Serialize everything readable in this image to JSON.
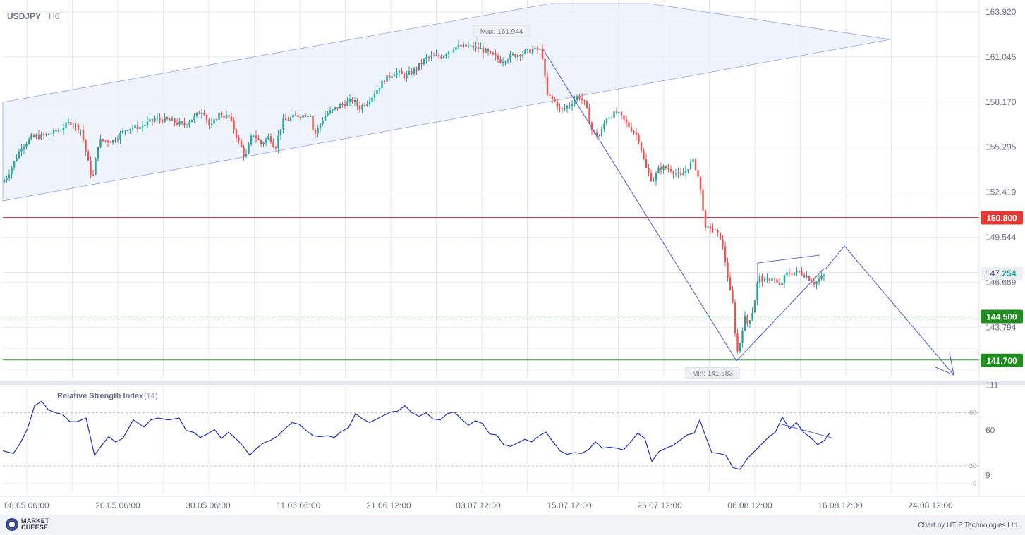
{
  "header": {
    "symbol": "USDJPY",
    "timeframe": "H6"
  },
  "footer": {
    "logo_text": "MARKET CHEESE",
    "credit": "Chart by UTIP Technologies Ltd."
  },
  "chart_data": [
    {
      "type": "candlestick",
      "symbol": "USDJPY",
      "timeframe": "H6",
      "y_ticks": [
        "163.920",
        "161.045",
        "158.170",
        "155.295",
        "152.419",
        "149.544",
        "146.669",
        "143.794"
      ],
      "x_ticks": [
        "08.05 06:00",
        "20.05 06:00",
        "30.05 06:00",
        "11.06 06:00",
        "21.06 12:00",
        "03.07 12:00",
        "15.07 12:00",
        "25.07 12:00",
        "06.08 12:00",
        "16.08 12:00",
        "24.08 12:00"
      ],
      "current_price": "147.254",
      "levels": [
        {
          "label": "150.800",
          "value": 150.8,
          "style": "solid",
          "color": "#e53935"
        },
        {
          "label": "144.500",
          "value": 144.5,
          "style": "dashed",
          "color": "#2e9b2e"
        },
        {
          "label": "141.700",
          "value": 141.7,
          "style": "solid",
          "color": "#2e9b2e"
        }
      ],
      "annotations": {
        "max": "Max: 161.944",
        "min": "Min: 141.683"
      },
      "colors": {
        "up": "#26a69a",
        "down": "#ef5350",
        "drawing": "#5b6bd6",
        "channel_fill": "#eaf0fb"
      },
      "path": [
        [
          0,
          152.8
        ],
        [
          12,
          153.6
        ],
        [
          30,
          155.3
        ],
        [
          45,
          155.9
        ],
        [
          60,
          156.0
        ],
        [
          80,
          156.3
        ],
        [
          100,
          156.9
        ],
        [
          115,
          156.4
        ],
        [
          125,
          154.3
        ],
        [
          131,
          153.2
        ],
        [
          140,
          155.7
        ],
        [
          160,
          155.7
        ],
        [
          180,
          156.5
        ],
        [
          200,
          156.6
        ],
        [
          220,
          157.1
        ],
        [
          240,
          157.0
        ],
        [
          260,
          156.7
        ],
        [
          275,
          157.2
        ],
        [
          288,
          157.7
        ],
        [
          298,
          156.5
        ],
        [
          310,
          157.4
        ],
        [
          325,
          157.2
        ],
        [
          335,
          156.0
        ],
        [
          348,
          154.6
        ],
        [
          358,
          156.2
        ],
        [
          370,
          155.5
        ],
        [
          382,
          156.0
        ],
        [
          390,
          155.2
        ],
        [
          400,
          156.9
        ],
        [
          420,
          157.3
        ],
        [
          440,
          157.4
        ],
        [
          445,
          156.0
        ],
        [
          460,
          157.3
        ],
        [
          480,
          157.9
        ],
        [
          500,
          158.3
        ],
        [
          510,
          157.8
        ],
        [
          525,
          158.4
        ],
        [
          545,
          159.6
        ],
        [
          560,
          160.1
        ],
        [
          575,
          159.8
        ],
        [
          590,
          160.3
        ],
        [
          605,
          161.0
        ],
        [
          625,
          161.1
        ],
        [
          645,
          161.7
        ],
        [
          665,
          161.7
        ],
        [
          680,
          161.6
        ],
        [
          695,
          161.2
        ],
        [
          710,
          160.8
        ],
        [
          725,
          161.1
        ],
        [
          740,
          161.3
        ],
        [
          755,
          161.5
        ],
        [
          768,
          161.5
        ],
        [
          775,
          158.6
        ],
        [
          785,
          158.3
        ],
        [
          795,
          157.6
        ],
        [
          810,
          158.1
        ],
        [
          820,
          158.6
        ],
        [
          830,
          158.0
        ],
        [
          840,
          156.2
        ],
        [
          850,
          156.0
        ],
        [
          860,
          157.2
        ],
        [
          875,
          157.5
        ],
        [
          890,
          156.7
        ],
        [
          905,
          155.9
        ],
        [
          915,
          154.0
        ],
        [
          925,
          153.1
        ],
        [
          935,
          154.0
        ],
        [
          950,
          153.9
        ],
        [
          965,
          153.4
        ],
        [
          975,
          154.0
        ],
        [
          982,
          154.4
        ],
        [
          988,
          153.8
        ],
        [
          995,
          152.0
        ],
        [
          1000,
          150.0
        ],
        [
          1008,
          150.2
        ],
        [
          1015,
          149.8
        ],
        [
          1022,
          149.5
        ],
        [
          1030,
          147.5
        ],
        [
          1035,
          146.0
        ],
        [
          1040,
          145.0
        ],
        [
          1044,
          142.0
        ],
        [
          1050,
          143.0
        ],
        [
          1055,
          144.5
        ],
        [
          1060,
          144.0
        ],
        [
          1068,
          145.0
        ],
        [
          1075,
          147.0
        ],
        [
          1085,
          146.7
        ],
        [
          1095,
          147.0
        ],
        [
          1105,
          146.4
        ],
        [
          1115,
          147.2
        ],
        [
          1125,
          147.3
        ],
        [
          1135,
          147.3
        ],
        [
          1145,
          147.0
        ],
        [
          1155,
          146.6
        ],
        [
          1165,
          147.0
        ],
        [
          1172,
          147.2
        ]
      ]
    },
    {
      "type": "line",
      "title": "Relative Strength Index",
      "period": "(14)",
      "y_ticks": [
        "111",
        "60",
        "9"
      ],
      "levels": [
        "80",
        "20",
        "0"
      ],
      "color": "#1f2fbf",
      "path": [
        [
          0,
          37
        ],
        [
          15,
          34
        ],
        [
          25,
          46
        ],
        [
          35,
          62
        ],
        [
          45,
          88
        ],
        [
          55,
          93
        ],
        [
          65,
          83
        ],
        [
          75,
          80
        ],
        [
          85,
          78
        ],
        [
          95,
          70
        ],
        [
          105,
          70
        ],
        [
          118,
          74
        ],
        [
          130,
          32
        ],
        [
          140,
          43
        ],
        [
          150,
          53
        ],
        [
          160,
          47
        ],
        [
          170,
          51
        ],
        [
          185,
          72
        ],
        [
          200,
          64
        ],
        [
          210,
          72
        ],
        [
          220,
          74
        ],
        [
          235,
          72
        ],
        [
          250,
          74
        ],
        [
          260,
          60
        ],
        [
          270,
          58
        ],
        [
          280,
          52
        ],
        [
          290,
          56
        ],
        [
          300,
          61
        ],
        [
          310,
          51
        ],
        [
          320,
          58
        ],
        [
          330,
          51
        ],
        [
          340,
          43
        ],
        [
          350,
          32
        ],
        [
          360,
          40
        ],
        [
          370,
          46
        ],
        [
          380,
          49
        ],
        [
          390,
          54
        ],
        [
          400,
          62
        ],
        [
          410,
          69
        ],
        [
          420,
          67
        ],
        [
          430,
          60
        ],
        [
          440,
          54
        ],
        [
          450,
          53
        ],
        [
          460,
          54
        ],
        [
          470,
          52
        ],
        [
          480,
          59
        ],
        [
          490,
          63
        ],
        [
          500,
          79
        ],
        [
          510,
          73
        ],
        [
          520,
          69
        ],
        [
          530,
          73
        ],
        [
          540,
          77
        ],
        [
          550,
          81
        ],
        [
          560,
          82
        ],
        [
          570,
          88
        ],
        [
          580,
          80
        ],
        [
          590,
          76
        ],
        [
          600,
          80
        ],
        [
          610,
          73
        ],
        [
          620,
          72
        ],
        [
          630,
          79
        ],
        [
          640,
          81
        ],
        [
          650,
          73
        ],
        [
          660,
          66
        ],
        [
          670,
          71
        ],
        [
          680,
          68
        ],
        [
          690,
          56
        ],
        [
          700,
          55
        ],
        [
          710,
          44
        ],
        [
          720,
          42
        ],
        [
          730,
          46
        ],
        [
          740,
          50
        ],
        [
          750,
          47
        ],
        [
          760,
          54
        ],
        [
          770,
          58
        ],
        [
          780,
          47
        ],
        [
          790,
          37
        ],
        [
          800,
          33
        ],
        [
          810,
          35
        ],
        [
          820,
          34
        ],
        [
          830,
          38
        ],
        [
          840,
          47
        ],
        [
          850,
          40
        ],
        [
          860,
          41
        ],
        [
          870,
          40
        ],
        [
          880,
          38
        ],
        [
          890,
          47
        ],
        [
          900,
          57
        ],
        [
          910,
          51
        ],
        [
          920,
          25
        ],
        [
          930,
          36
        ],
        [
          940,
          40
        ],
        [
          950,
          43
        ],
        [
          960,
          49
        ],
        [
          970,
          55
        ],
        [
          980,
          57
        ],
        [
          988,
          72
        ],
        [
          995,
          56
        ],
        [
          1005,
          35
        ],
        [
          1015,
          34
        ],
        [
          1025,
          32
        ],
        [
          1035,
          18
        ],
        [
          1045,
          16
        ],
        [
          1055,
          28
        ],
        [
          1065,
          36
        ],
        [
          1075,
          44
        ],
        [
          1085,
          52
        ],
        [
          1095,
          58
        ],
        [
          1105,
          75
        ],
        [
          1115,
          62
        ],
        [
          1125,
          69
        ],
        [
          1135,
          58
        ],
        [
          1145,
          52
        ],
        [
          1155,
          44
        ],
        [
          1165,
          49
        ],
        [
          1172,
          57
        ]
      ]
    }
  ]
}
